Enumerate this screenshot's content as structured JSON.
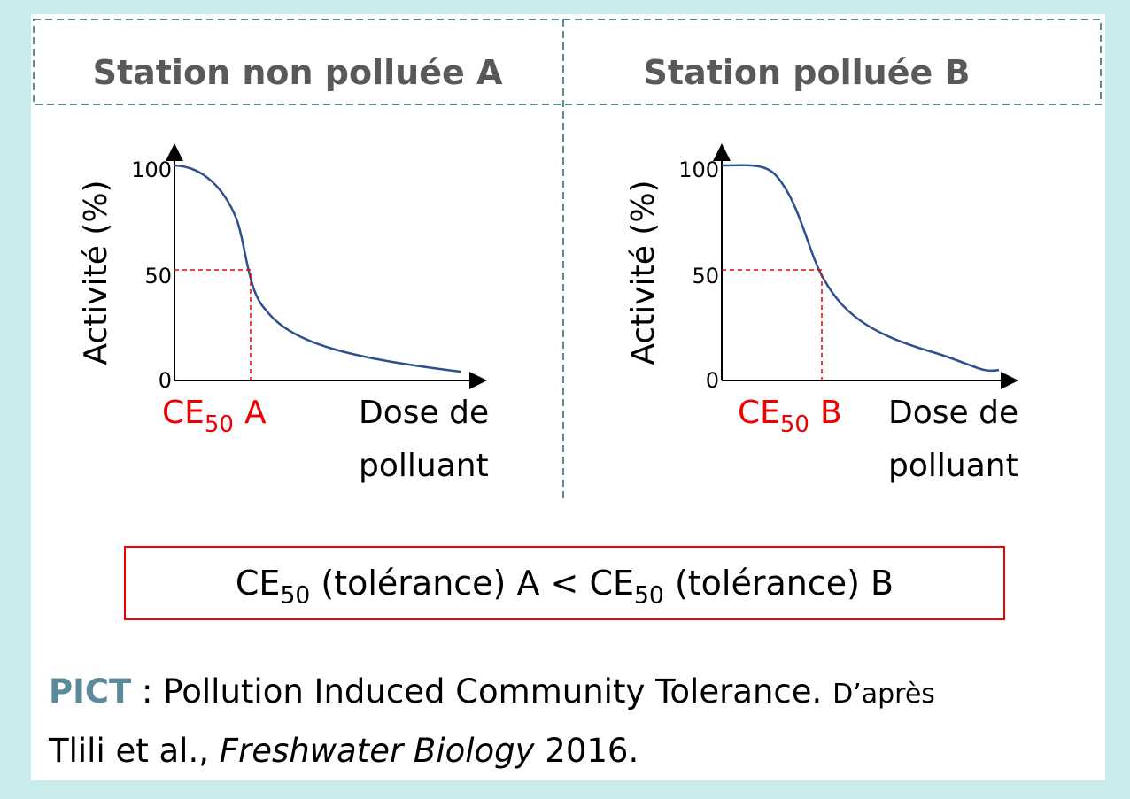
{
  "panels": [
    {
      "title": "Station non polluée A",
      "y_label": "Activité (%)",
      "y_ticks": [
        "100",
        "50",
        "0"
      ],
      "marker": {
        "base": "CE",
        "sub": "50",
        "suffix": "A"
      },
      "x_label": [
        "Dose de",
        "polluant"
      ]
    },
    {
      "title": "Station polluée B",
      "y_label": "Activité (%)",
      "y_ticks": [
        "100",
        "50",
        "0"
      ],
      "marker": {
        "base": "CE",
        "sub": "50",
        "suffix": "B"
      },
      "x_label": [
        "Dose de",
        "polluant"
      ]
    }
  ],
  "comparison": {
    "left": {
      "base": "CE",
      "sub": "50",
      "text": "(tolérance) A <"
    },
    "right": {
      "base": "CE",
      "sub": "50",
      "text": "(tolérance) B"
    }
  },
  "footer": {
    "acronym": "PICT",
    "definition": ": Pollution Induced Community Tolerance.",
    "source": "D’après",
    "authors": "Tlili et al.,",
    "journal": "Freshwater Biology",
    "year": "2016."
  }
}
